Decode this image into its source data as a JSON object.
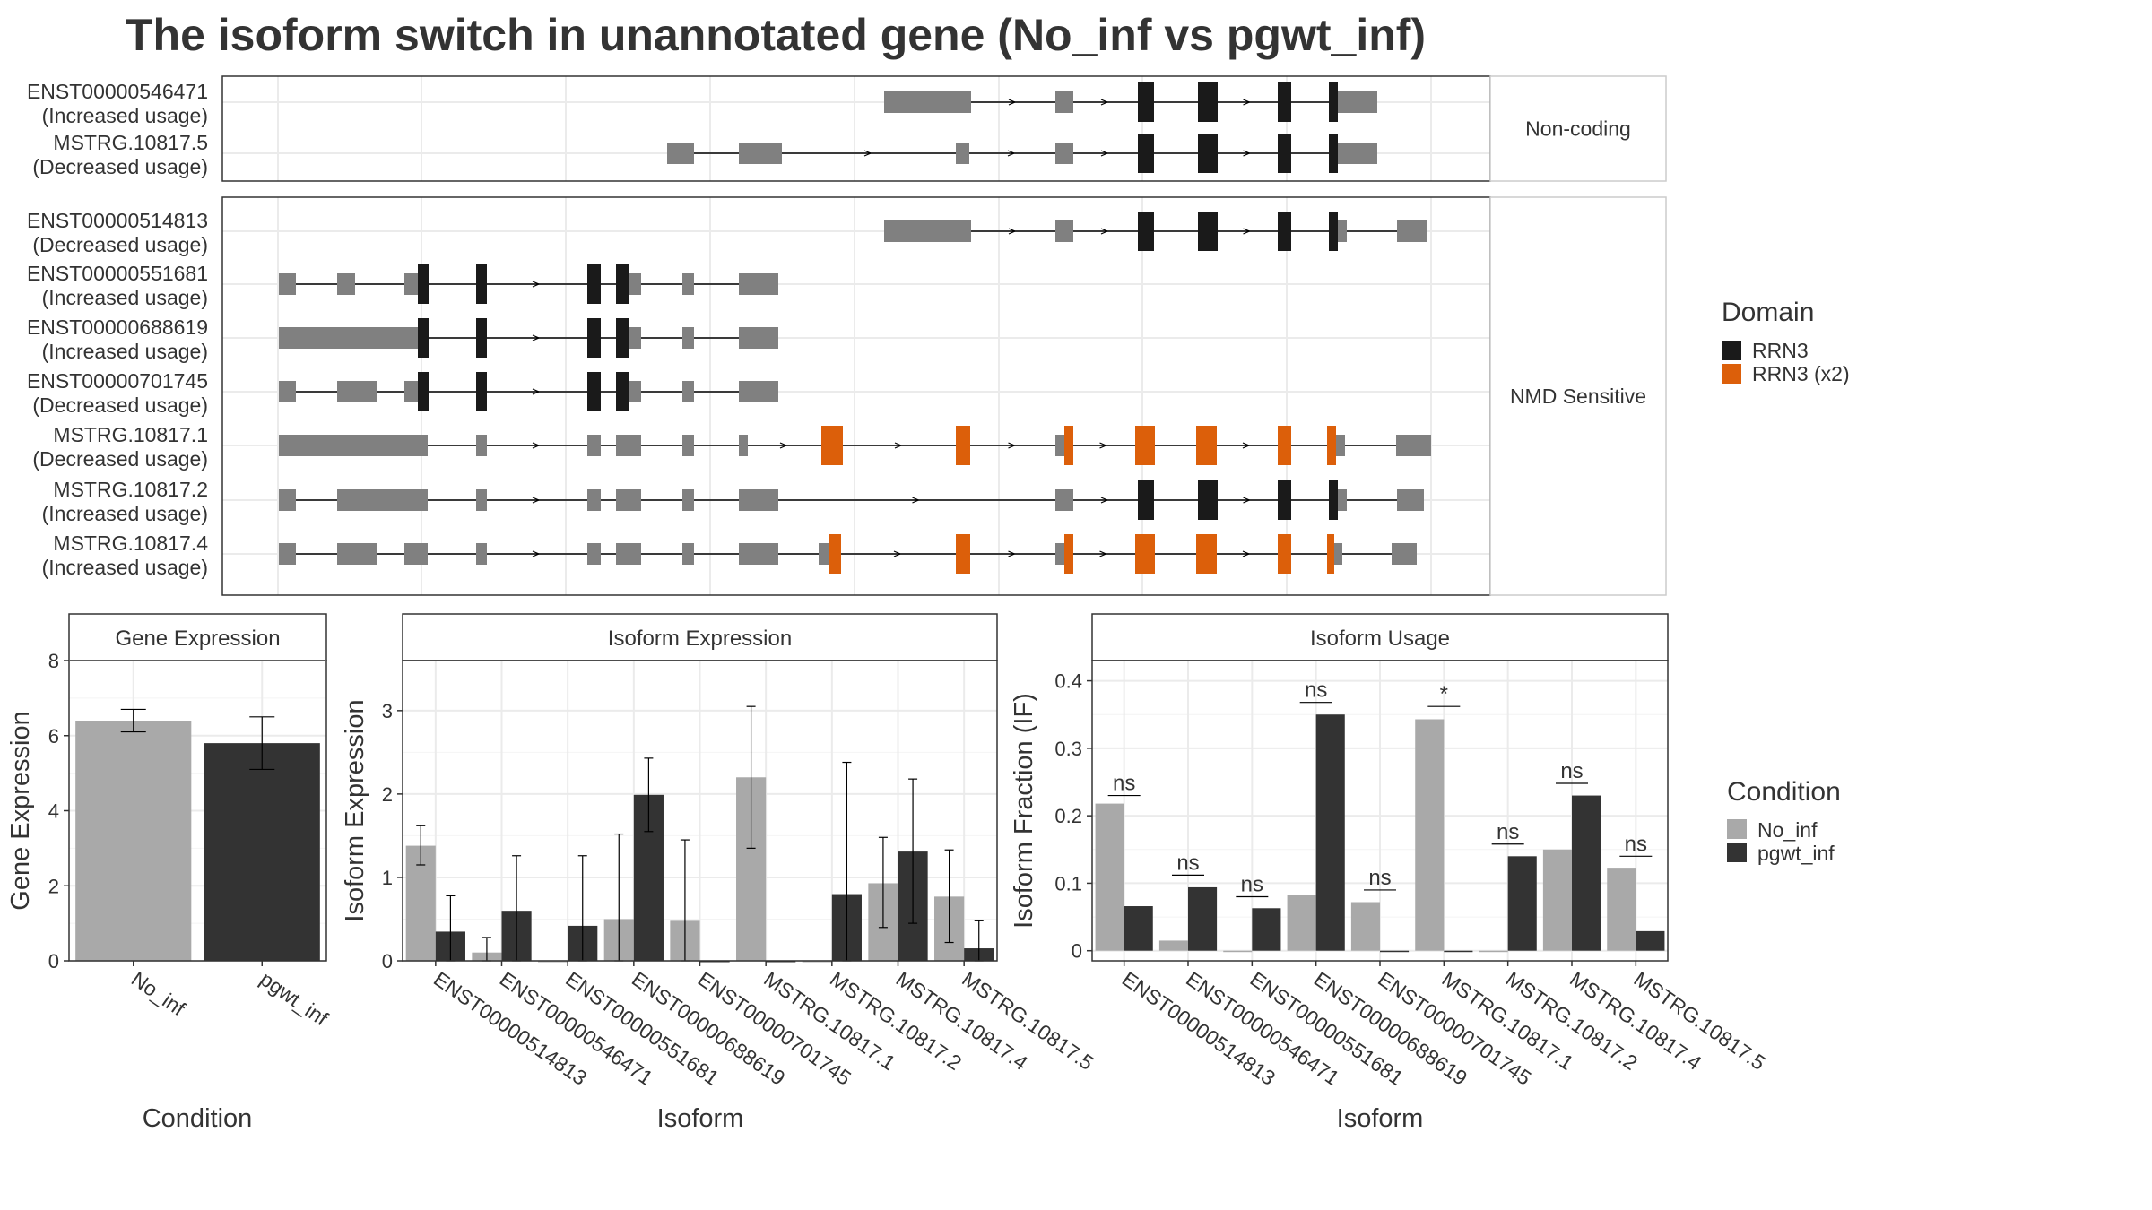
{
  "title": "The isoform switch in unannotated gene (No_inf vs pgwt_inf)",
  "colors": {
    "exon": "#808080",
    "rrn3": "#1a1a1a",
    "rrn3x2": "#dc5f0a",
    "no_inf": "#a9a9a9",
    "pgwt_inf": "#333333"
  },
  "structure": {
    "groups": [
      {
        "label": "Non-coding",
        "transcripts": [
          {
            "name": "ENST00000546471",
            "usage": "(Increased usage)"
          },
          {
            "name": "MSTRG.10817.5",
            "usage": "(Decreased usage)"
          }
        ]
      },
      {
        "label": "NMD Sensitive",
        "transcripts": [
          {
            "name": "ENST00000514813",
            "usage": "(Decreased usage)"
          },
          {
            "name": "ENST00000551681",
            "usage": "(Increased usage)"
          },
          {
            "name": "ENST00000688619",
            "usage": "(Increased usage)"
          },
          {
            "name": "ENST00000701745",
            "usage": "(Decreased usage)"
          },
          {
            "name": "MSTRG.10817.1",
            "usage": "(Decreased usage)"
          },
          {
            "name": "MSTRG.10817.2",
            "usage": "(Increased usage)"
          },
          {
            "name": "MSTRG.10817.4",
            "usage": "(Increased usage)"
          }
        ]
      }
    ]
  },
  "legend_domain": {
    "title": "Domain",
    "items": [
      {
        "label": "RRN3",
        "color": "#1a1a1a"
      },
      {
        "label": "RRN3 (x2)",
        "color": "#dc5f0a"
      }
    ]
  },
  "legend_condition": {
    "title": "Condition",
    "items": [
      {
        "label": "No_inf",
        "color": "#a9a9a9"
      },
      {
        "label": "pgwt_inf",
        "color": "#333333"
      }
    ]
  },
  "chart_data": [
    {
      "type": "bar",
      "title": "Gene Expression",
      "xlabel": "Condition",
      "ylabel": "Gene Expression",
      "ylim": [
        0,
        8
      ],
      "yticks": [
        0,
        2,
        4,
        6,
        8
      ],
      "categories": [
        "No_inf",
        "pgwt_inf"
      ],
      "values": [
        6.4,
        5.8
      ],
      "error": [
        [
          6.1,
          6.7
        ],
        [
          5.1,
          6.5
        ]
      ]
    },
    {
      "type": "bar",
      "title": "Isoform Expression",
      "xlabel": "Isoform",
      "ylabel": "Isoform Expression",
      "ylim": [
        0,
        3.6
      ],
      "yticks": [
        0,
        1,
        2,
        3
      ],
      "categories": [
        "ENST00000514813",
        "ENST00000546471",
        "ENST00000551681",
        "ENST00000688619",
        "ENST00000701745",
        "MSTRG.10817.1",
        "MSTRG.10817.2",
        "MSTRG.10817.4",
        "MSTRG.10817.5"
      ],
      "series": [
        {
          "name": "No_inf",
          "values": [
            1.38,
            0.1,
            0.0,
            0.5,
            0.48,
            2.2,
            0.0,
            0.93,
            0.77
          ],
          "error": [
            [
              1.15,
              1.62
            ],
            [
              0.0,
              0.28
            ],
            null,
            [
              0.0,
              1.52
            ],
            [
              0.0,
              1.45
            ],
            [
              1.35,
              3.05
            ],
            null,
            [
              0.4,
              1.48
            ],
            [
              0.22,
              1.33
            ]
          ]
        },
        {
          "name": "pgwt_inf",
          "values": [
            0.35,
            0.6,
            0.42,
            1.99,
            0.0,
            0.0,
            0.8,
            1.31,
            0.15
          ],
          "error": [
            [
              0.0,
              0.78
            ],
            [
              0.0,
              1.26
            ],
            [
              0.0,
              1.26
            ],
            [
              1.55,
              2.43
            ],
            null,
            null,
            [
              0.0,
              2.38
            ],
            [
              0.45,
              2.18
            ],
            [
              0.0,
              0.48
            ]
          ]
        }
      ]
    },
    {
      "type": "bar",
      "title": "Isoform Usage",
      "xlabel": "Isoform",
      "ylabel": "Isoform Fraction (IF)",
      "ylim": [
        -0.015,
        0.43
      ],
      "yticks": [
        0.0,
        0.1,
        0.2,
        0.3,
        0.4
      ],
      "categories": [
        "ENST00000514813",
        "ENST00000546471",
        "ENST00000551681",
        "ENST00000688619",
        "ENST00000701745",
        "MSTRG.10817.1",
        "MSTRG.10817.2",
        "MSTRG.10817.4",
        "MSTRG.10817.5"
      ],
      "series": [
        {
          "name": "No_inf",
          "values": [
            0.218,
            0.015,
            0.0,
            0.082,
            0.072,
            0.343,
            0.0,
            0.15,
            0.123
          ]
        },
        {
          "name": "pgwt_inf",
          "values": [
            0.066,
            0.094,
            0.063,
            0.35,
            0.0,
            0.0,
            0.14,
            0.23,
            0.029
          ]
        }
      ],
      "annotations": [
        {
          "category": "ENST00000514813",
          "text": "ns",
          "at": 0.23
        },
        {
          "category": "ENST00000546471",
          "text": "ns",
          "at": 0.112
        },
        {
          "category": "ENST00000551681",
          "text": "ns",
          "at": 0.08
        },
        {
          "category": "ENST00000688619",
          "text": "ns",
          "at": 0.368
        },
        {
          "category": "ENST00000701745",
          "text": "ns",
          "at": 0.09
        },
        {
          "category": "MSTRG.10817.1",
          "text": "*",
          "at": 0.362
        },
        {
          "category": "MSTRG.10817.2",
          "text": "ns",
          "at": 0.158
        },
        {
          "category": "MSTRG.10817.4",
          "text": "ns",
          "at": 0.248
        },
        {
          "category": "MSTRG.10817.5",
          "text": "ns",
          "at": 0.14
        }
      ]
    }
  ]
}
